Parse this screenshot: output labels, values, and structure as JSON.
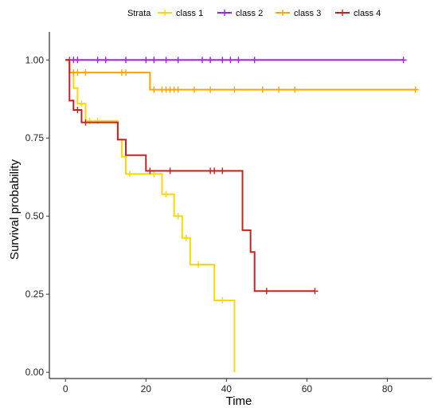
{
  "chart_data": {
    "type": "line",
    "title": "",
    "xlabel": "Time",
    "ylabel": "Survival probability",
    "xlim": [
      -4,
      91
    ],
    "ylim": [
      -0.02,
      1.09
    ],
    "x_ticks": [
      0,
      20,
      40,
      60,
      80
    ],
    "y_ticks": [
      0.0,
      0.25,
      0.5,
      0.75,
      1.0
    ],
    "y_tick_labels": [
      "0.00",
      "0.25",
      "0.50",
      "0.75",
      "1.00"
    ],
    "grid": false,
    "step": true,
    "legend": {
      "title": "Strata",
      "position": "top"
    },
    "series": [
      {
        "name": "class 1",
        "color": "#FFD700",
        "steps": [
          [
            0,
            1.0
          ],
          [
            1,
            0.96
          ],
          [
            2,
            0.91
          ],
          [
            3,
            0.86
          ],
          [
            5,
            0.805
          ],
          [
            13,
            0.745
          ],
          [
            14,
            0.69
          ],
          [
            15,
            0.635
          ],
          [
            24,
            0.57
          ],
          [
            27,
            0.5
          ],
          [
            29,
            0.43
          ],
          [
            31,
            0.345
          ],
          [
            37,
            0.23
          ],
          [
            42,
            0.0
          ]
        ],
        "end_x": 42,
        "censored": [
          [
            4,
            0.86
          ],
          [
            6,
            0.805
          ],
          [
            8,
            0.805
          ],
          [
            16,
            0.635
          ],
          [
            22,
            0.635
          ],
          [
            25,
            0.57
          ],
          [
            28,
            0.5
          ],
          [
            30,
            0.43
          ],
          [
            33,
            0.345
          ],
          [
            39,
            0.23
          ]
        ]
      },
      {
        "name": "class 2",
        "color": "#A020F0",
        "steps": [
          [
            0,
            1.0
          ]
        ],
        "end_x": 84,
        "censored": [
          [
            1,
            1.0
          ],
          [
            2,
            1.0
          ],
          [
            3,
            1.0
          ],
          [
            8,
            1.0
          ],
          [
            10,
            1.0
          ],
          [
            15,
            1.0
          ],
          [
            20,
            1.0
          ],
          [
            22,
            1.0
          ],
          [
            25,
            1.0
          ],
          [
            28,
            1.0
          ],
          [
            34,
            1.0
          ],
          [
            36,
            1.0
          ],
          [
            39,
            1.0
          ],
          [
            41,
            1.0
          ],
          [
            43,
            1.0
          ],
          [
            47,
            1.0
          ],
          [
            84,
            1.0
          ]
        ]
      },
      {
        "name": "class 3",
        "color": "#FFA500",
        "steps": [
          [
            0,
            1.0
          ],
          [
            1,
            0.96
          ],
          [
            21,
            0.905
          ]
        ],
        "end_x": 87,
        "censored": [
          [
            2,
            0.96
          ],
          [
            3,
            0.96
          ],
          [
            5,
            0.96
          ],
          [
            14,
            0.96
          ],
          [
            15,
            0.96
          ],
          [
            22,
            0.905
          ],
          [
            24,
            0.905
          ],
          [
            25,
            0.905
          ],
          [
            26,
            0.905
          ],
          [
            27,
            0.905
          ],
          [
            28,
            0.905
          ],
          [
            32,
            0.905
          ],
          [
            36,
            0.905
          ],
          [
            42,
            0.905
          ],
          [
            49,
            0.905
          ],
          [
            53,
            0.905
          ],
          [
            57,
            0.905
          ],
          [
            87,
            0.905
          ]
        ]
      },
      {
        "name": "class 4",
        "color": "#CC1F1F",
        "steps": [
          [
            0,
            1.0
          ],
          [
            1,
            0.87
          ],
          [
            2,
            0.84
          ],
          [
            4,
            0.8
          ],
          [
            13,
            0.745
          ],
          [
            15,
            0.695
          ],
          [
            20,
            0.645
          ],
          [
            44,
            0.455
          ],
          [
            46,
            0.385
          ],
          [
            47,
            0.26
          ]
        ],
        "end_x": 62,
        "censored": [
          [
            3,
            0.84
          ],
          [
            5,
            0.8
          ],
          [
            21,
            0.645
          ],
          [
            26,
            0.645
          ],
          [
            36,
            0.645
          ],
          [
            37,
            0.645
          ],
          [
            39,
            0.645
          ],
          [
            50,
            0.26
          ],
          [
            62,
            0.26
          ]
        ]
      }
    ]
  }
}
